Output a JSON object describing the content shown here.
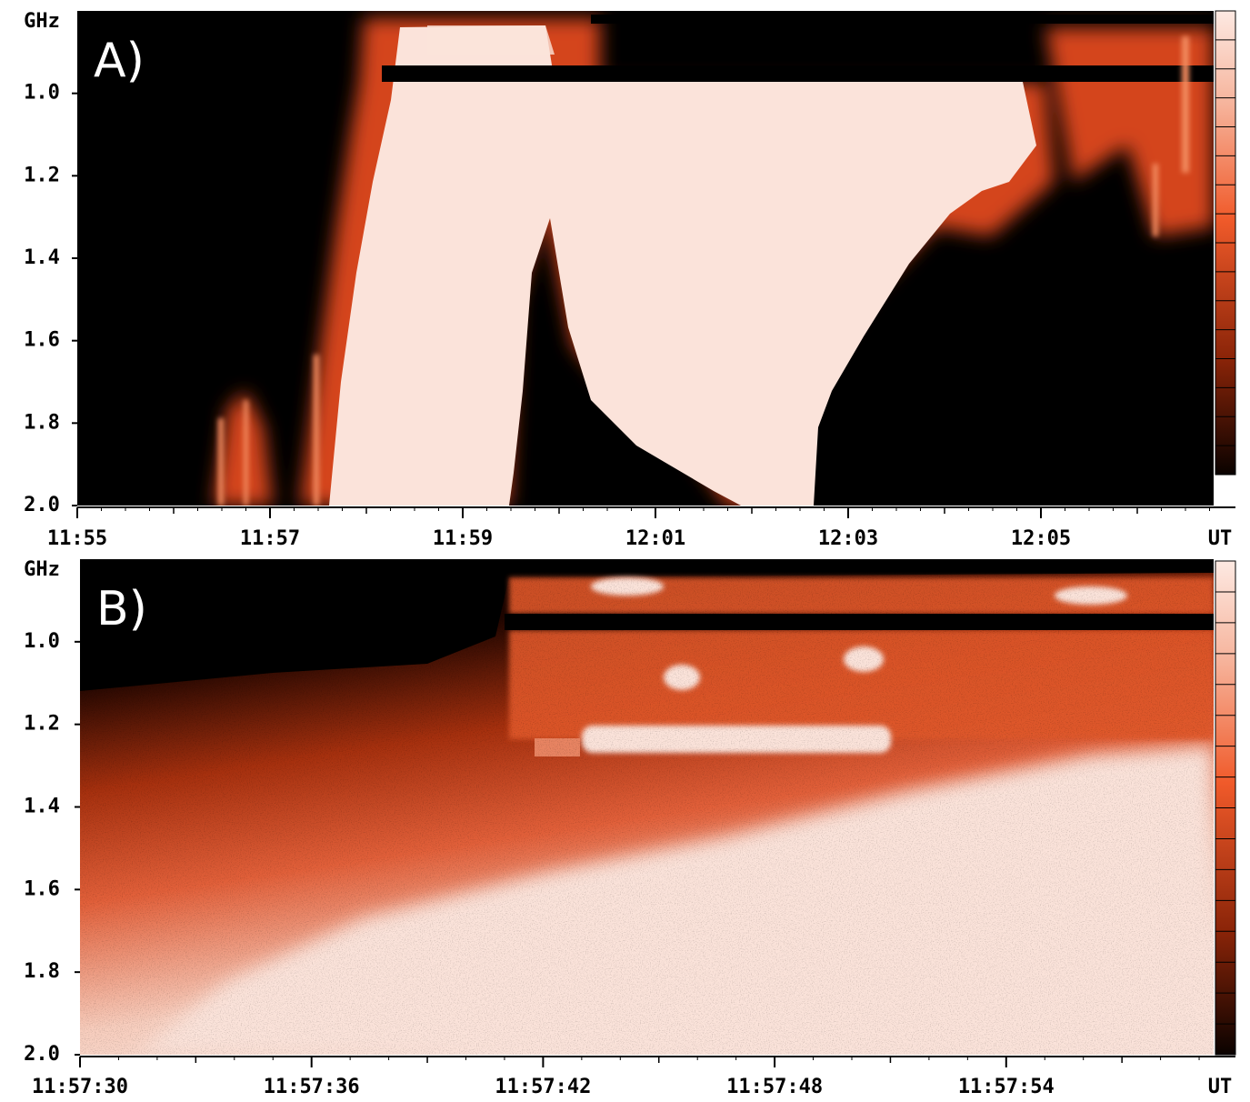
{
  "chart_data": [
    {
      "type": "spectrogram",
      "panel_label": "A)",
      "y_label": "GHz",
      "x_label": "UT",
      "ylim": [
        0.8,
        2.0
      ],
      "y_inverted": true,
      "yticks": [
        {
          "value": 1,
          "label": "1.0"
        },
        1.2,
        1.4,
        1.6,
        1.8,
        {
          "value": 2,
          "label": "2.0"
        }
      ],
      "xticks": [
        "11:55",
        "11:57",
        "11:59",
        "12:01",
        "12:03",
        "12:05"
      ]
    },
    {
      "type": "spectrogram",
      "panel_label": "B)",
      "y_label": "GHz",
      "x_label": "UT",
      "ylim": [
        0.8,
        2.0
      ],
      "y_inverted": true,
      "yticks": [
        {
          "value": 1,
          "label": "1.0"
        },
        1.2,
        1.4,
        1.6,
        1.8,
        {
          "value": 2,
          "label": "2.0"
        }
      ],
      "xticks": [
        "11:57:30",
        "11:57:36",
        "11:57:42",
        "11:57:48",
        "11:57:54"
      ]
    }
  ]
}
